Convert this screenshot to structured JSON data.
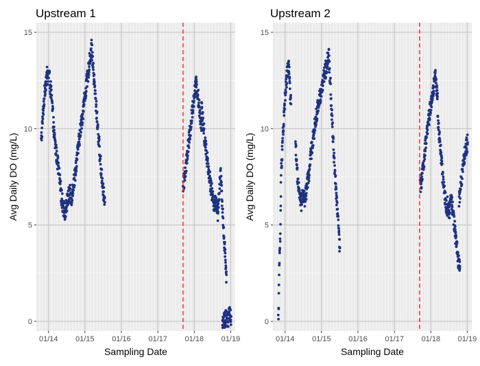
{
  "chart_data": [
    {
      "type": "scatter",
      "title": "Upstream 1",
      "xlabel": "Sampling Date",
      "ylabel": "Avg Daily DO (mg/L)",
      "x_ticks": [
        "01/14",
        "01/15",
        "01/16",
        "01/17",
        "01/18",
        "01/19"
      ],
      "y_ticks": [
        "0",
        "5",
        "10",
        "15"
      ],
      "ylim": [
        -0.5,
        15.5
      ],
      "xlim": [
        "2013-09-01",
        "2019-02-15"
      ],
      "grid": true,
      "point_color": "#1f3280",
      "reference_line": {
        "date": "2017-09-10",
        "color": "#ff2a2a",
        "style": "dashed"
      },
      "series": [
        {
          "segments": [
            {
              "start": "2013-10-20",
              "end": "2014-02-20",
              "values": [
                9.3,
                10.2,
                11.1,
                11.9,
                12.4,
                12.8,
                12.6,
                12.9,
                12.2,
                11.8,
                11.0,
                10.2
              ]
            },
            {
              "start": "2014-02-20",
              "end": "2014-05-15",
              "values": [
                10.0,
                9.3,
                8.7,
                8.2,
                7.6,
                6.9,
                6.3
              ]
            },
            {
              "start": "2014-05-15",
              "end": "2014-09-01",
              "values": [
                6.3,
                5.9,
                5.7,
                6.0,
                6.4,
                6.7,
                6.3,
                6.9
              ]
            },
            {
              "start": "2014-09-01",
              "end": "2015-03-10",
              "values": [
                6.9,
                7.5,
                8.3,
                9.1,
                9.9,
                10.6,
                11.4,
                12.1,
                12.8,
                13.6,
                14.2
              ]
            },
            {
              "start": "2015-03-10",
              "end": "2015-07-20",
              "values": [
                14.2,
                13.0,
                11.9,
                10.8,
                9.7,
                8.6,
                7.6,
                6.8,
                6.1
              ]
            },
            {
              "start": "2017-09-10",
              "end": "2018-03-15",
              "values": [
                7.0,
                7.6,
                8.4,
                9.2,
                10.0,
                10.9,
                11.7,
                12.3,
                11.8,
                10.9,
                10.2
              ]
            },
            {
              "start": "2018-03-15",
              "end": "2018-08-10",
              "values": [
                11.1,
                10.2,
                9.4,
                8.7,
                8.1,
                7.4,
                6.8,
                6.4,
                6.0,
                6.2
              ]
            },
            {
              "start": "2018-08-10",
              "end": "2018-11-20",
              "values": [
                6.3,
                5.6,
                6.8,
                7.6,
                6.2,
                4.8,
                3.5,
                2.2
              ]
            },
            {
              "start": "2018-10-10",
              "end": "2019-01-05",
              "values": [
                0.0,
                0.1,
                0.2,
                0.1,
                0.3,
                0.2
              ]
            }
          ]
        }
      ]
    },
    {
      "type": "scatter",
      "title": "Upstream 2",
      "xlabel": "Sampling Date",
      "ylabel": "Avg Daily DO (mg/L)",
      "x_ticks": [
        "01/14",
        "01/15",
        "01/16",
        "01/17",
        "01/18",
        "01/19"
      ],
      "y_ticks": [
        "0",
        "5",
        "10",
        "15"
      ],
      "ylim": [
        -0.5,
        15.5
      ],
      "xlim": [
        "2013-09-01",
        "2019-02-15"
      ],
      "grid": true,
      "point_color": "#1f3280",
      "reference_line": {
        "date": "2017-09-10",
        "color": "#ff2a2a",
        "style": "dashed"
      },
      "series": [
        {
          "segments": [
            {
              "start": "2013-10-25",
              "end": "2013-11-20",
              "values": [
                0.1,
                1.6,
                3.6,
                4.3,
                6.2
              ]
            },
            {
              "start": "2013-11-20",
              "end": "2014-03-01",
              "values": [
                7.5,
                8.8,
                9.9,
                10.9,
                11.8,
                12.5,
                13.0,
                13.3,
                12.2,
                11.2
              ]
            },
            {
              "start": "2014-04-15",
              "end": "2014-09-15",
              "values": [
                9.3,
                7.6,
                6.5,
                6.1,
                6.6,
                6.3,
                7.0,
                7.6,
                8.6
              ]
            },
            {
              "start": "2014-09-15",
              "end": "2015-03-15",
              "values": [
                8.6,
                9.6,
                10.5,
                11.3,
                11.9,
                12.6,
                13.2,
                13.9
              ]
            },
            {
              "start": "2015-03-15",
              "end": "2015-07-05",
              "values": [
                13.9,
                12.5,
                11.0,
                9.6,
                8.2,
                7.0,
                6.0,
                4.9,
                3.7
              ]
            },
            {
              "start": "2017-09-15",
              "end": "2018-03-10",
              "values": [
                6.9,
                7.6,
                8.6,
                9.6,
                10.5,
                11.3,
                12.0,
                12.8,
                11.5
              ]
            },
            {
              "start": "2018-03-10",
              "end": "2018-06-15",
              "values": [
                10.5,
                9.6,
                8.7,
                7.6,
                6.7,
                6.2,
                5.9
              ]
            },
            {
              "start": "2018-06-15",
              "end": "2018-10-20",
              "values": [
                6.1,
                5.6,
                6.3,
                5.8,
                4.9,
                4.0,
                3.2,
                2.8
              ]
            },
            {
              "start": "2018-10-10",
              "end": "2019-01-05",
              "values": [
                6.2,
                7.0,
                7.8,
                8.5,
                9.0,
                9.3
              ]
            }
          ]
        }
      ]
    }
  ]
}
